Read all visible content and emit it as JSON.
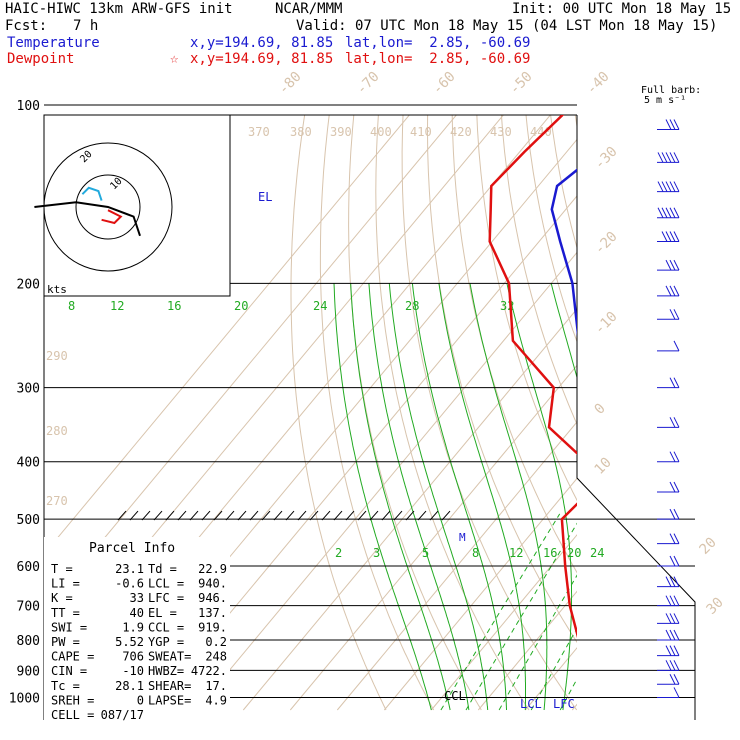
{
  "header": {
    "model": "HAIC-HIWC 13km ARW-GFS init",
    "org": "NCAR/MMM",
    "init": "Init: 00 UTC Mon 18 May 15",
    "fcst_label": "Fcst:",
    "fcst_value": "7 h",
    "valid": "Valid: 07 UTC Mon 18 May 15 (04 LST Mon 18 May 15)"
  },
  "legend": {
    "temperature": {
      "name": "Temperature",
      "xy": "x,y=194.69, 81.85",
      "latlon": "lat,lon=  2.85, -60.69",
      "color": "#1a1ad0"
    },
    "dewpoint": {
      "name": "Dewpoint",
      "star": "☆",
      "xy": "x,y=194.69, 81.85",
      "latlon": "lat,lon=  2.85, -60.69",
      "color": "#e01010"
    }
  },
  "barb_title": [
    "Full barb:",
    "5 m s⁻¹"
  ],
  "hodograph": {
    "units": "kts",
    "ring_labels": [
      "10",
      "20"
    ]
  },
  "parcel_info": {
    "title": "Parcel Info",
    "rows": [
      [
        "T   =",
        "23.1",
        "Td =",
        "22.9"
      ],
      [
        "LI  =",
        "-0.6",
        "LCL =",
        "940."
      ],
      [
        "K   =",
        "33",
        "LFC =",
        "946."
      ],
      [
        "TT  =",
        "40",
        "EL  =",
        "137."
      ],
      [
        "SWI =",
        "1.9",
        "CCL =",
        "919."
      ],
      [
        "PW  =",
        "5.52",
        "YGP =",
        "0.2"
      ],
      [
        "CAPE =",
        "706",
        "SWEAT=",
        "248"
      ],
      [
        "CIN  =",
        "-10",
        "HWBZ=",
        "4722."
      ],
      [
        "Tc  =",
        "28.1",
        "SHEAR=",
        "17."
      ],
      [
        "SREH =",
        "0",
        "LAPSE=",
        "4.9"
      ],
      [
        "CELL =",
        "087/17",
        "",
        ""
      ]
    ]
  },
  "level_labels": {
    "EL": "EL",
    "M": "M",
    "CCL": "CCL",
    "LCL": "LCL",
    "LFC": "LFC"
  },
  "chart_data": {
    "type": "line",
    "title": "",
    "pressure_ticks": [
      "100",
      "200",
      "300",
      "400",
      "500",
      "600",
      "700",
      "800",
      "900",
      "1000"
    ],
    "pressure_axis": "log",
    "ylim": [
      1000,
      100
    ],
    "isotherm_labels": [
      "-80",
      "-70",
      "-60",
      "-50",
      "-40",
      "-30",
      "-20",
      "-10",
      "0",
      "10",
      "20",
      "30",
      "40"
    ],
    "theta_labels": [
      "370",
      "380",
      "390",
      "400",
      "410",
      "420",
      "430",
      "440",
      "290",
      "280",
      "270"
    ],
    "mixing_ratio_labels_upper": [
      "8",
      "12",
      "16",
      "20",
      "24",
      "28",
      "32"
    ],
    "mixing_ratio_labels_lower": [
      "2",
      "3",
      "5",
      "8",
      "12",
      "16",
      "20",
      "24"
    ],
    "series": [
      {
        "name": "Temperature",
        "color": "#1a1ad0",
        "pressure": [
          1000,
          960,
          940,
          900,
          850,
          800,
          700,
          600,
          500,
          450,
          400,
          350,
          300,
          250,
          200,
          170,
          150,
          137,
          120,
          100
        ],
        "temperature": [
          23.6,
          22.4,
          21.5,
          18.6,
          15.5,
          12.5,
          6.0,
          -2.0,
          -7.5,
          -11.0,
          -17.0,
          -24.0,
          -33.0,
          -44.0,
          -55.5,
          -65.5,
          -73.0,
          -76.0,
          -73.0,
          -66.5
        ]
      },
      {
        "name": "Dewpoint",
        "color": "#e01010",
        "pressure": [
          1000,
          960,
          940,
          900,
          850,
          800,
          700,
          600,
          500,
          450,
          400,
          350,
          300,
          250,
          200,
          170,
          150,
          137,
          120,
          100
        ],
        "temperature": [
          22.9,
          22.6,
          21.0,
          17.0,
          13.5,
          9.0,
          1.0,
          -7.0,
          -16.0,
          -15.0,
          -21.0,
          -35.0,
          -41.0,
          -58.0,
          -69.0,
          -80.5,
          -86.0,
          -90.0,
          -89.0,
          -87.0
        ]
      }
    ],
    "hodograph_trace_kts": [
      [
        -23,
        0
      ],
      [
        -10,
        1.5
      ],
      [
        0,
        0
      ],
      [
        8,
        -3
      ],
      [
        10,
        -9
      ]
    ],
    "hodograph_trace2_kts": [
      [
        -8,
        4
      ],
      [
        -6,
        6
      ],
      [
        -3,
        5
      ],
      [
        -2,
        2
      ]
    ],
    "hodograph_trace3_kts": [
      [
        0,
        -1
      ],
      [
        4,
        -3
      ],
      [
        2,
        -5
      ],
      [
        -2,
        -4
      ]
    ],
    "wind_barbs": [
      {
        "p": 110,
        "speed_ms": 15,
        "dir": 270
      },
      {
        "p": 125,
        "speed_ms": 25,
        "dir": 280
      },
      {
        "p": 140,
        "speed_ms": 25,
        "dir": 285
      },
      {
        "p": 155,
        "speed_ms": 25,
        "dir": 290
      },
      {
        "p": 170,
        "speed_ms": 20,
        "dir": 290
      },
      {
        "p": 190,
        "speed_ms": 15,
        "dir": 280
      },
      {
        "p": 210,
        "speed_ms": 15,
        "dir": 270
      },
      {
        "p": 230,
        "speed_ms": 10,
        "dir": 260
      },
      {
        "p": 260,
        "speed_ms": 5,
        "dir": 240
      },
      {
        "p": 300,
        "speed_ms": 10,
        "dir": 100
      },
      {
        "p": 350,
        "speed_ms": 10,
        "dir": 100
      },
      {
        "p": 400,
        "speed_ms": 10,
        "dir": 95
      },
      {
        "p": 450,
        "speed_ms": 10,
        "dir": 95
      },
      {
        "p": 500,
        "speed_ms": 10,
        "dir": 95
      },
      {
        "p": 550,
        "speed_ms": 10,
        "dir": 95
      },
      {
        "p": 600,
        "speed_ms": 10,
        "dir": 95
      },
      {
        "p": 650,
        "speed_ms": 15,
        "dir": 95
      },
      {
        "p": 700,
        "speed_ms": 15,
        "dir": 95
      },
      {
        "p": 750,
        "speed_ms": 15,
        "dir": 95
      },
      {
        "p": 800,
        "speed_ms": 15,
        "dir": 95
      },
      {
        "p": 850,
        "speed_ms": 15,
        "dir": 90
      },
      {
        "p": 900,
        "speed_ms": 15,
        "dir": 90
      },
      {
        "p": 950,
        "speed_ms": 10,
        "dir": 90
      },
      {
        "p": 1000,
        "speed_ms": 5,
        "dir": 90
      }
    ]
  }
}
